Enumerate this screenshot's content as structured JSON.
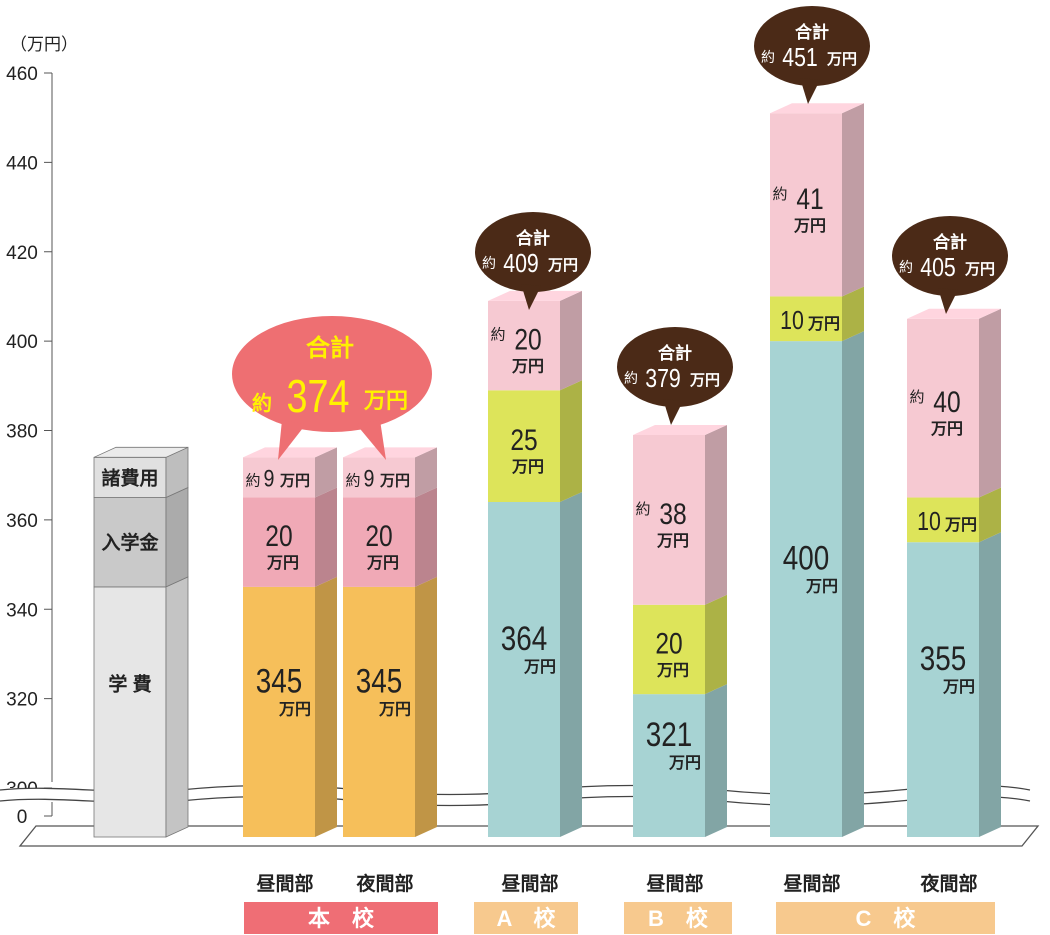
{
  "chart_data": {
    "type": "bar",
    "stacked": true,
    "y_unit_label": "（万円）",
    "ylim": [
      300,
      460
    ],
    "y_ticks": [
      "460",
      "440",
      "420",
      "400",
      "380",
      "360",
      "340",
      "320",
      "300",
      "0"
    ],
    "axis_break": "between 0 and 300",
    "legend_column": {
      "segments": [
        {
          "label": "学 費",
          "value": 345
        },
        {
          "label": "入学金",
          "value": 20
        },
        {
          "label": "諸費用",
          "value": 9
        }
      ]
    },
    "bars": [
      {
        "label": "昼間部",
        "group": "本　校",
        "segments": [
          {
            "value": 345,
            "num": "345",
            "prefix": "",
            "unit": "万円"
          },
          {
            "value": 20,
            "num": "20",
            "prefix": "",
            "unit": "万円"
          },
          {
            "value": 9,
            "num": "9",
            "prefix": "約",
            "unit": "万円"
          }
        ]
      },
      {
        "label": "夜間部",
        "group": "本　校",
        "segments": [
          {
            "value": 345,
            "num": "345",
            "prefix": "",
            "unit": "万円"
          },
          {
            "value": 20,
            "num": "20",
            "prefix": "",
            "unit": "万円"
          },
          {
            "value": 9,
            "num": "9",
            "prefix": "約",
            "unit": "万円"
          }
        ]
      },
      {
        "label": "昼間部",
        "group": "A　校",
        "total": {
          "title": "合計",
          "prefix": "約",
          "num": "409",
          "unit": "万円"
        },
        "segments": [
          {
            "value": 364,
            "num": "364",
            "prefix": "",
            "unit": "万円"
          },
          {
            "value": 25,
            "num": "25",
            "prefix": "",
            "unit": "万円"
          },
          {
            "value": 20,
            "num": "20",
            "prefix": "約",
            "unit": "万円"
          }
        ]
      },
      {
        "label": "昼間部",
        "group": "B　校",
        "total": {
          "title": "合計",
          "prefix": "約",
          "num": "379",
          "unit": "万円"
        },
        "segments": [
          {
            "value": 321,
            "num": "321",
            "prefix": "",
            "unit": "万円"
          },
          {
            "value": 20,
            "num": "20",
            "prefix": "",
            "unit": "万円"
          },
          {
            "value": 38,
            "num": "38",
            "prefix": "約",
            "unit": "万円"
          }
        ]
      },
      {
        "label": "昼間部",
        "group": "C　校",
        "total": {
          "title": "合計",
          "prefix": "約",
          "num": "451",
          "unit": "万円"
        },
        "segments": [
          {
            "value": 400,
            "num": "400",
            "prefix": "",
            "unit": "万円"
          },
          {
            "value": 10,
            "num": "10",
            "prefix": "",
            "unit": "万円"
          },
          {
            "value": 41,
            "num": "41",
            "prefix": "約",
            "unit": "万円"
          }
        ]
      },
      {
        "label": "夜間部",
        "group": "C　校",
        "total": {
          "title": "合計",
          "prefix": "約",
          "num": "405",
          "unit": "万円"
        },
        "segments": [
          {
            "value": 355,
            "num": "355",
            "prefix": "",
            "unit": "万円"
          },
          {
            "value": 10,
            "num": "10",
            "prefix": "",
            "unit": "万円"
          },
          {
            "value": 40,
            "num": "40",
            "prefix": "約",
            "unit": "万円"
          }
        ]
      }
    ],
    "main_school_total": {
      "title": "合計",
      "prefix": "約",
      "num": "374",
      "unit": "万円"
    },
    "groups": [
      {
        "label": "本　校",
        "color": "#ef6e75"
      },
      {
        "label": "A　校",
        "color": "#f7c98e"
      },
      {
        "label": "B　校",
        "color": "#f7c98e"
      },
      {
        "label": "C　校",
        "color": "#f7c98e"
      }
    ],
    "colors": {
      "main_tuition": "#f6bf5a",
      "main_entry": "#f0a9b6",
      "main_misc": "#f6c9d2",
      "other_tuition": "#a7d3d3",
      "other_entry": "#dde45a",
      "other_misc": "#f6c9d2",
      "legend_tuition": "#e6e6e6",
      "legend_entry": "#c9c9c9",
      "legend_misc": "#e0e0e0",
      "callout_dark": "#4b2a17",
      "callout_red": "#ee6f72",
      "callout_red_text": "#fff200"
    }
  }
}
